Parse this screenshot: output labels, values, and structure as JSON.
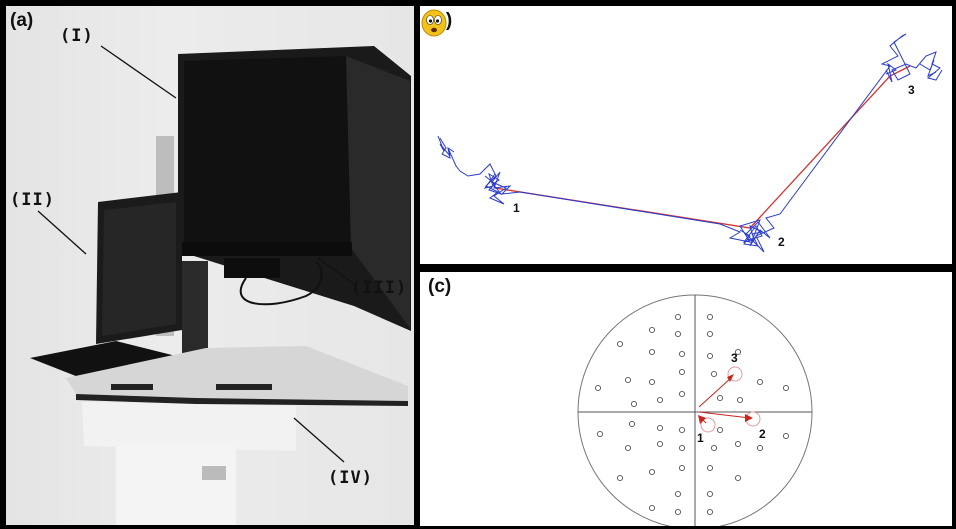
{
  "panel_a": {
    "label": "(a)",
    "callouts": [
      "(I)",
      "(II)",
      "(III)",
      "(IV)"
    ]
  },
  "panel_b": {
    "label": "(b)",
    "point_labels": [
      "1",
      "2",
      "3"
    ],
    "icon": "worried-face-icon"
  },
  "panel_c": {
    "label": "(c)",
    "point_labels": [
      "3",
      "1",
      "2"
    ]
  },
  "colors": {
    "trace_blue": "#2a3bd0",
    "trace_red": "#d2332f",
    "arrow_red": "#c8261e"
  }
}
